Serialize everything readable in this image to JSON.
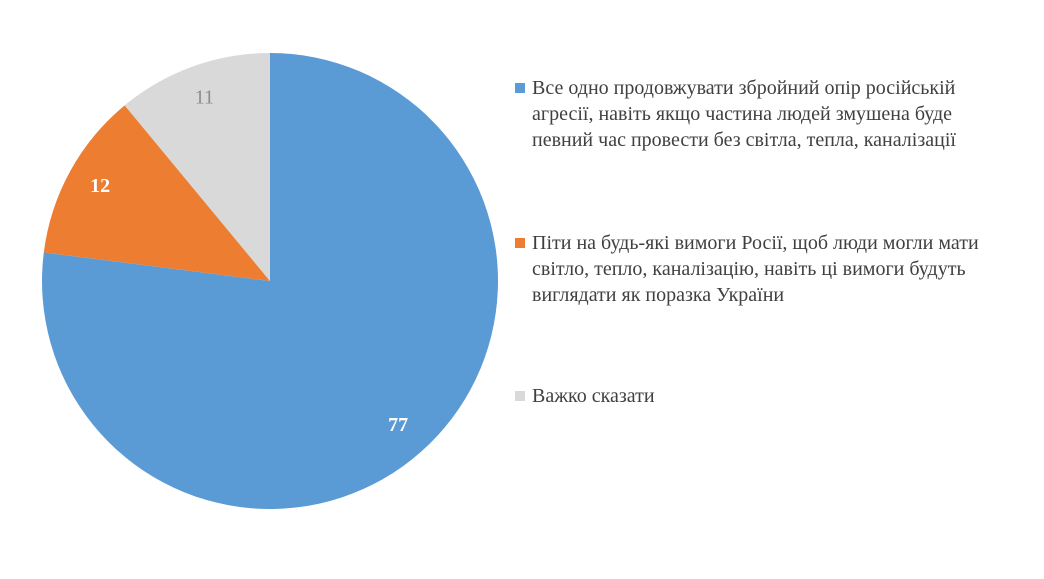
{
  "chart_data": {
    "type": "pie",
    "categories": [
      "Все одно продовжувати збройний опір російській агресії, навіть якщо частина людей змушена буде певний час провести без світла, тепла, каналізації",
      "Піти на будь-які вимоги Росії, щоб люди могли мати світло, тепло, каналізацію, навіть ці вимоги будуть виглядати як поразка України",
      "Важко сказати"
    ],
    "values": [
      77,
      12,
      11
    ],
    "colors": [
      "#5b9bd5",
      "#ed7d31",
      "#d9d9d9"
    ],
    "legend": "right"
  }
}
